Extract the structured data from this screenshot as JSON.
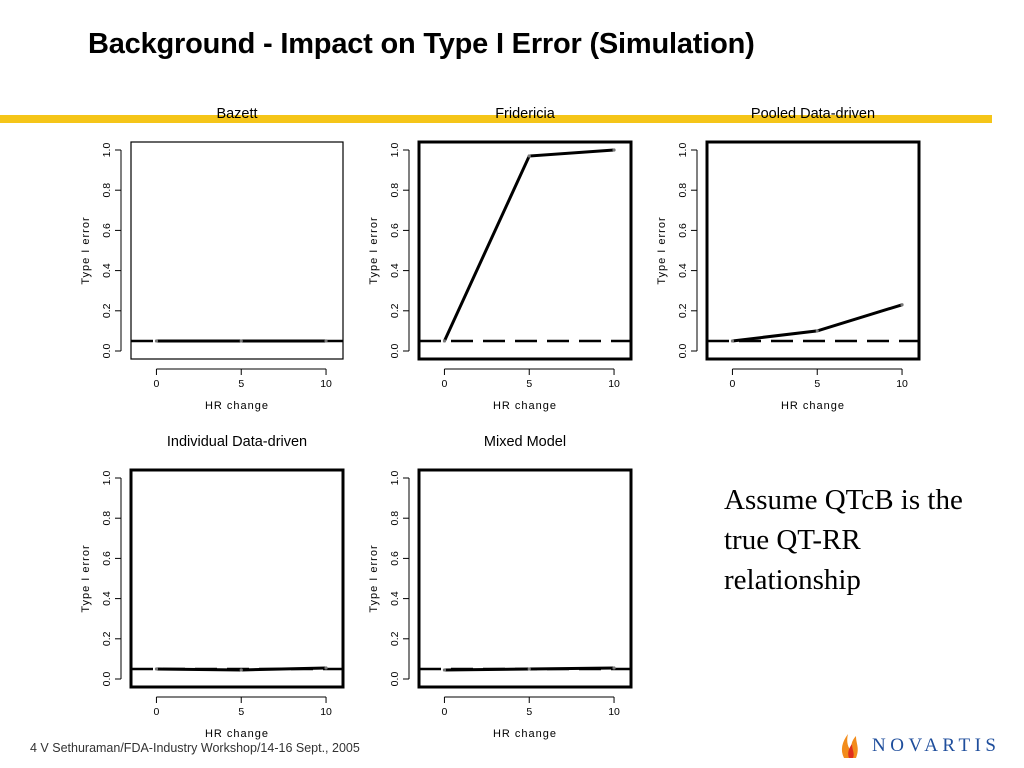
{
  "slide": {
    "title": "Background - Impact on Type I Error (Simulation)",
    "note": "Assume QTcB is the true QT-RR relationship",
    "footer": "4 V Sethuraman/FDA-Industry Workshop/14-16 Sept., 2005",
    "logo_text": "NOVARTIS",
    "accent_color": "#f5c518",
    "logo_color": "#1f4e9c"
  },
  "chart_data": [
    {
      "type": "line",
      "title": "Bazett",
      "xlabel": "HR change",
      "ylabel": "Type I error",
      "x": [
        0,
        5,
        10
      ],
      "xticks": [
        "0",
        "5",
        "10"
      ],
      "yticks": [
        "0.0",
        "0.2",
        "0.4",
        "0.6",
        "0.8",
        "1.0"
      ],
      "xlim": [
        -1.5,
        11
      ],
      "ylim": [
        0,
        1
      ],
      "reference_line": 0.05,
      "series": [
        {
          "values": [
            0.05,
            0.05,
            0.05
          ]
        }
      ]
    },
    {
      "type": "line",
      "title": "Fridericia",
      "xlabel": "HR change",
      "ylabel": "Type I error",
      "x": [
        0,
        5,
        10
      ],
      "xticks": [
        "0",
        "5",
        "10"
      ],
      "yticks": [
        "0.0",
        "0.2",
        "0.4",
        "0.6",
        "0.8",
        "1.0"
      ],
      "xlim": [
        -1.5,
        11
      ],
      "ylim": [
        0,
        1
      ],
      "reference_line": 0.05,
      "series": [
        {
          "values": [
            0.05,
            0.97,
            1.0
          ]
        }
      ]
    },
    {
      "type": "line",
      "title": "Pooled Data-driven",
      "xlabel": "HR change",
      "ylabel": "Type I error",
      "x": [
        0,
        5,
        10
      ],
      "xticks": [
        "0",
        "5",
        "10"
      ],
      "yticks": [
        "0.0",
        "0.2",
        "0.4",
        "0.6",
        "0.8",
        "1.0"
      ],
      "xlim": [
        -1.5,
        11
      ],
      "ylim": [
        0,
        1
      ],
      "reference_line": 0.05,
      "series": [
        {
          "values": [
            0.05,
            0.1,
            0.23
          ]
        }
      ]
    },
    {
      "type": "line",
      "title": "Individual Data-driven",
      "xlabel": "HR change",
      "ylabel": "Type I error",
      "x": [
        0,
        5,
        10
      ],
      "xticks": [
        "0",
        "5",
        "10"
      ],
      "yticks": [
        "0.0",
        "0.2",
        "0.4",
        "0.6",
        "0.8",
        "1.0"
      ],
      "xlim": [
        -1.5,
        11
      ],
      "ylim": [
        0,
        1
      ],
      "reference_line": 0.05,
      "series": [
        {
          "values": [
            0.05,
            0.045,
            0.055
          ]
        }
      ]
    },
    {
      "type": "line",
      "title": "Mixed Model",
      "xlabel": "HR change",
      "ylabel": "Type I error",
      "x": [
        0,
        5,
        10
      ],
      "xticks": [
        "0",
        "5",
        "10"
      ],
      "yticks": [
        "0.0",
        "0.2",
        "0.4",
        "0.6",
        "0.8",
        "1.0"
      ],
      "xlim": [
        -1.5,
        11
      ],
      "ylim": [
        0,
        1
      ],
      "reference_line": 0.05,
      "series": [
        {
          "values": [
            0.045,
            0.05,
            0.055
          ]
        }
      ]
    }
  ]
}
